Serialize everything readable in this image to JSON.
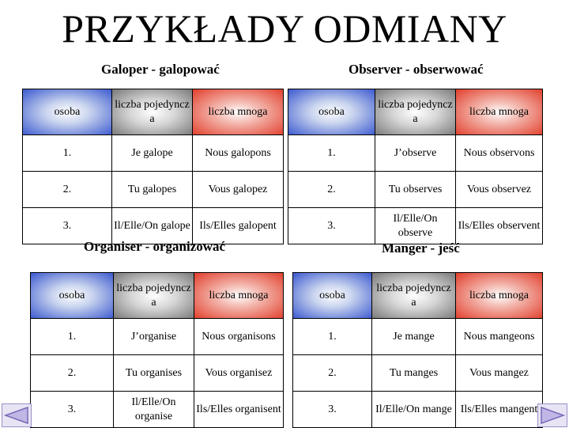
{
  "title": "PRZYKŁADY ODMIANY",
  "headers": {
    "osoba": "osoba",
    "singular": "liczba pojedyncz a",
    "plural": "liczba mnoga"
  },
  "tables": [
    {
      "subtitle": "Galoper - galopować",
      "rows": [
        {
          "person": "1.",
          "singular": "Je galope",
          "plural": "Nous galopons"
        },
        {
          "person": "2.",
          "singular": "Tu galopes",
          "plural": "Vous galopez"
        },
        {
          "person": "3.",
          "singular": "Il/Elle/On galope",
          "plural": "Ils/Elles galopent"
        }
      ]
    },
    {
      "subtitle": "Observer - obserwować",
      "rows": [
        {
          "person": "1.",
          "singular": "J’observe",
          "plural": "Nous observons"
        },
        {
          "person": "2.",
          "singular": "Tu observes",
          "plural": "Vous observez"
        },
        {
          "person": "3.",
          "singular": "Il/Elle/On observe",
          "plural": "Ils/Elles observent"
        }
      ]
    },
    {
      "subtitle": "Organiser - organizować",
      "rows": [
        {
          "person": "1.",
          "singular": "J’organise",
          "plural": "Nous organisons"
        },
        {
          "person": "2.",
          "singular": "Tu organises",
          "plural": "Vous organisez"
        },
        {
          "person": "3.",
          "singular": "Il/Elle/On organise",
          "plural": "Ils/Elles organisent"
        }
      ]
    },
    {
      "subtitle": "Manger - jeść",
      "rows": [
        {
          "person": "1.",
          "singular": "Je mange",
          "plural": "Nous mangeons"
        },
        {
          "person": "2.",
          "singular": "Tu manges",
          "plural": "Vous mangez"
        },
        {
          "person": "3.",
          "singular": "Il/Elle/On mange",
          "plural": "Ils/Elles mangent"
        }
      ]
    }
  ],
  "colors": {
    "osoba_header": "#3d5bd0",
    "singular_header": "#7a7a7a",
    "plural_header": "#e2412e"
  },
  "nav": {
    "prev_icon": "previous-slide-icon",
    "next_icon": "next-slide-icon"
  }
}
